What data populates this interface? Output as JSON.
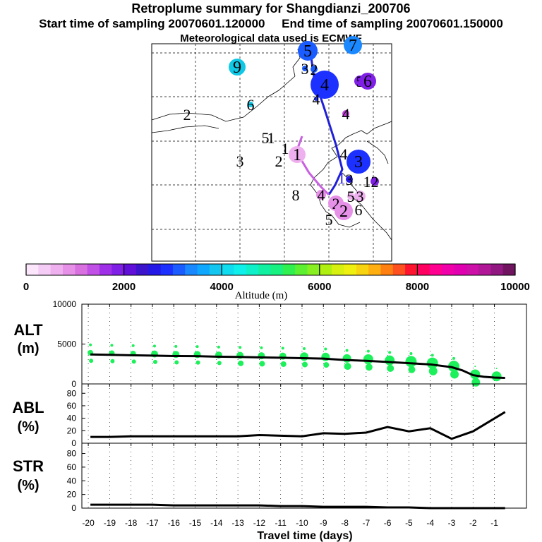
{
  "header": {
    "title": "Retroplume summary for Shangdianzi_200706",
    "times": "Start time of sampling 20070601.120000     End time of sampling 20070601.150000",
    "meteo": "Meteorological data used is ECMWF"
  },
  "colorbar": {
    "label": "Altitude (m)",
    "min": 0,
    "max": 10000,
    "ticks": [
      0,
      2000,
      4000,
      6000,
      8000,
      10000
    ],
    "colors": [
      "#fbe6fb",
      "#f5ccf5",
      "#eeb0ee",
      "#e690e8",
      "#d870e0",
      "#c050e6",
      "#a030e8",
      "#8020e6",
      "#6010d8",
      "#3c14cc",
      "#2418e6",
      "#1c30ff",
      "#1a5cff",
      "#1a88ff",
      "#10a8ff",
      "#12c6f0",
      "#10dcf0",
      "#10f0ea",
      "#10f0c8",
      "#10f0a0",
      "#18f080",
      "#30f050",
      "#5cf030",
      "#88f020",
      "#b0f010",
      "#d8f010",
      "#f0f010",
      "#f8d410",
      "#ffb010",
      "#ff8010",
      "#ff5020",
      "#ff1430",
      "#ff0060",
      "#ff0090",
      "#f000a8",
      "#e000b0",
      "#cc10a8",
      "#b01898",
      "#901880",
      "#701460"
    ]
  },
  "map": {
    "markers": [
      {
        "label": "5",
        "color": "#1a5cff"
      },
      {
        "label": "7",
        "color": "#1a88ff"
      },
      {
        "label": "9",
        "color": "#10c8e6"
      },
      {
        "label": "3",
        "color": "#1a5cff"
      },
      {
        "label": "2",
        "color": "#1a5cff"
      },
      {
        "label": "4",
        "color": "#1c30ff"
      },
      {
        "label": "4",
        "color": "#1c30ff"
      },
      {
        "label": "5",
        "color": "#8020e6"
      },
      {
        "label": "6",
        "color": "#8020e6"
      },
      {
        "label": "2",
        "color": "#000000"
      },
      {
        "label": "6",
        "color": "#10c8e6"
      },
      {
        "label": "4",
        "color": "#c040d8"
      },
      {
        "label": "5",
        "color": "#000000"
      },
      {
        "label": "1",
        "color": "#000000"
      },
      {
        "label": "1",
        "color": "#000000"
      },
      {
        "label": "3",
        "color": "#000000"
      },
      {
        "label": "2",
        "color": "#000000"
      },
      {
        "label": "1",
        "color": "#eeb0ee"
      },
      {
        "label": "4",
        "color": "#000000"
      },
      {
        "label": "3",
        "color": "#1c30ff"
      },
      {
        "label": "1",
        "color": "#2418e6"
      },
      {
        "label": "3",
        "color": "#2418e6"
      },
      {
        "label": "1",
        "color": "#000000"
      },
      {
        "label": "2",
        "color": "#8020e6"
      },
      {
        "label": "8",
        "color": "#000000"
      },
      {
        "label": "4",
        "color": "#e690e8"
      },
      {
        "label": "5",
        "color": "#eeb0ee"
      },
      {
        "label": "3",
        "color": "#eeb0ee"
      },
      {
        "label": "2",
        "color": "#e690e8"
      },
      {
        "label": "2",
        "color": "#e690e8"
      },
      {
        "label": "6",
        "color": "#000000"
      },
      {
        "label": "5",
        "color": "#000000"
      }
    ]
  },
  "chart_data": [
    {
      "type": "scatter",
      "panel": "ALT",
      "ylabel": "ALT\n(m)",
      "ylim": [
        0,
        10000
      ],
      "yticks": [
        0,
        5000,
        10000
      ],
      "xlim": [
        -20.3,
        0.5
      ],
      "mean_line": {
        "x": [
          -19.9,
          -19,
          -18,
          -17,
          -16,
          -15,
          -14,
          -13,
          -12,
          -11,
          -10,
          -9,
          -8,
          -7,
          -6,
          -5,
          -4,
          -3,
          -2.5,
          -2,
          -1.5,
          -1,
          -0.5
        ],
        "y": [
          3700,
          3650,
          3600,
          3550,
          3500,
          3480,
          3420,
          3380,
          3330,
          3280,
          3230,
          3180,
          3000,
          2900,
          2750,
          2600,
          2450,
          2100,
          1700,
          1100,
          900,
          800,
          750
        ]
      },
      "clusters_x": [
        -19.9,
        -18.9,
        -17.9,
        -16.9,
        -15.9,
        -14.9,
        -13.9,
        -12.9,
        -11.9,
        -10.9,
        -9.9,
        -8.9,
        -7.9,
        -6.9,
        -5.9,
        -4.9,
        -3.9,
        -2.9,
        -1.9,
        -0.9
      ],
      "cluster_y": [
        3800,
        3000,
        4800
      ],
      "mean_line_y_for_clusters": [
        3700,
        3650,
        3600,
        3550,
        3500,
        3480,
        3420,
        3380,
        3330,
        3280,
        3230,
        3180,
        3000,
        2900,
        2750,
        2600,
        2400,
        2000,
        1000,
        750
      ]
    },
    {
      "type": "line",
      "panel": "ABL",
      "ylabel": "ABL\n(%)",
      "ylim": [
        0,
        95
      ],
      "yticks": [
        0,
        20,
        40,
        60,
        80
      ],
      "x": [
        -19.9,
        -19,
        -18,
        -17,
        -16,
        -15,
        -14,
        -13,
        -12,
        -11,
        -10,
        -9,
        -8,
        -7,
        -6,
        -5,
        -4,
        -3,
        -2,
        -0.5
      ],
      "y": [
        10,
        10,
        11,
        11,
        11,
        11,
        11,
        11,
        13,
        12,
        11,
        16,
        15,
        17,
        26,
        19,
        24,
        7,
        19,
        50
      ]
    },
    {
      "type": "line",
      "panel": "STR",
      "ylabel": "STR\n(%)",
      "ylim": [
        0,
        95
      ],
      "yticks": [
        0,
        20,
        40,
        60,
        80
      ],
      "x": [
        -19.9,
        -19,
        -18,
        -17,
        -16,
        -15,
        -14,
        -13,
        -12,
        -11,
        -10,
        -9,
        -8,
        -7,
        -6,
        -5,
        -4,
        -3,
        -2,
        -0.5
      ],
      "y": [
        5,
        5,
        5,
        5,
        4,
        4,
        4,
        4,
        4,
        3,
        3,
        2,
        2,
        2,
        1,
        1,
        0,
        0,
        0,
        0
      ]
    }
  ],
  "x_axis": {
    "label": "Travel time (days)",
    "ticks": [
      -20,
      -19,
      -18,
      -17,
      -16,
      -15,
      -14,
      -13,
      -12,
      -11,
      -10,
      -9,
      -8,
      -7,
      -6,
      -5,
      -4,
      -3,
      -2,
      -1
    ]
  }
}
